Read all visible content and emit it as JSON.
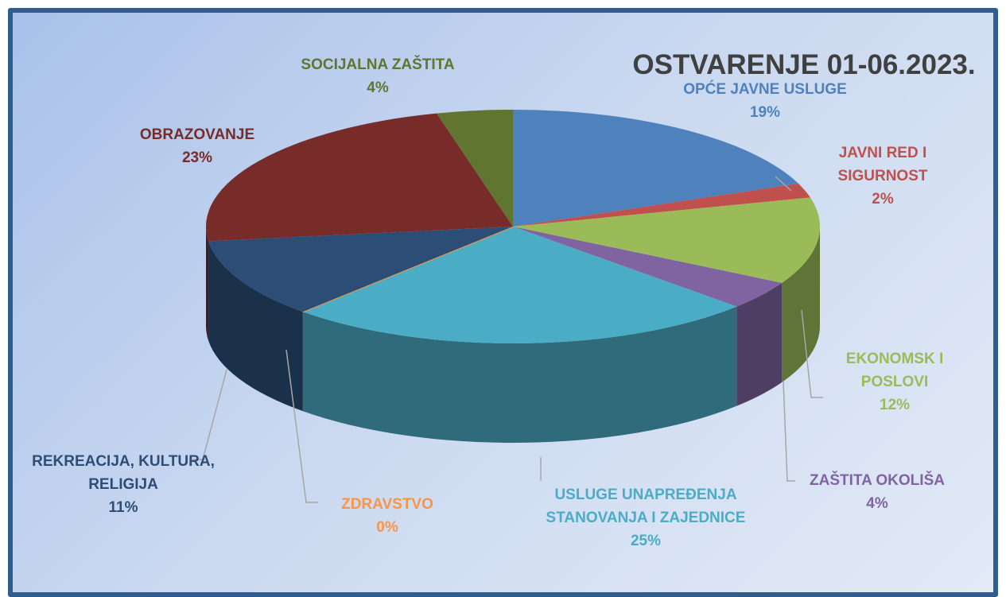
{
  "chart_data": {
    "type": "pie",
    "title": "OSTVARENJE 01-06.2023.",
    "categories": [
      "OPĆE JAVNE USLUGE",
      "JAVNI RED I SIGURNOST",
      "EKONOMSK I POSLOVI",
      "ZAŠTITA OKOLIŠA",
      "USLUGE UNAPREĐENJA STANOVANJA I ZAJEDNICE",
      "ZDRAVSTVO",
      "REKREACIJA, KULTURA, RELIGIJA",
      "OBRAZOVANJE",
      "SOCIJALNA ZAŠTITA"
    ],
    "values": [
      19,
      2,
      12,
      4,
      25,
      0,
      11,
      23,
      4
    ],
    "value_labels": [
      "19%",
      "2%",
      "12%",
      "4%",
      "25%",
      "0%",
      "11%",
      "23%",
      "4%"
    ],
    "colors": [
      "#4f81bd",
      "#c0504d",
      "#9bbb59",
      "#8064a2",
      "#4bacc6",
      "#f79646",
      "#2c4d75",
      "#772c2a",
      "#5f7530"
    ]
  }
}
